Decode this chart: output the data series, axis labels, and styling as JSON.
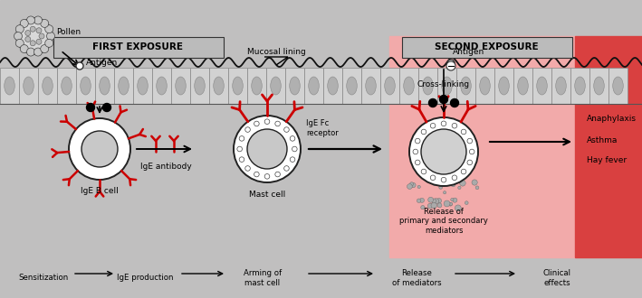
{
  "bg_color": "#c0bfbf",
  "red_light": "#f2aaaa",
  "red_mid": "#e87070",
  "red_dark": "#d94040",
  "white": "#ffffff",
  "gray_nucleus": "#c8c8c8",
  "gray_tissue": "#d4d4d4",
  "title_first": "FIRST EXPOSURE",
  "title_second": "SECOND EXPOSURE",
  "labels": {
    "pollen": "Pollen",
    "antigen1": "Antigen",
    "mucosal": "Mucosal lining",
    "antigen2": "Antigen",
    "IgE_fc": "IgE Fc\nreceptor",
    "cross": "Cross-linking",
    "IgE_b": "IgE B cell",
    "IgE_ab": "IgE antibody",
    "mast": "Mast cell",
    "release": "Release of\nprimary and secondary\nmediators",
    "anaph": "Anaphylaxis",
    "asthma": "Asthma",
    "hay": "Hay fever",
    "sens": "Sensitization",
    "IgE_prod": "IgE production",
    "arming": "Arming of\nmast cell",
    "rel_med": "Release\nof mediators",
    "clinical": "Clinical\neffects"
  },
  "figure_size": [
    7.09,
    3.3
  ],
  "dpi": 100
}
